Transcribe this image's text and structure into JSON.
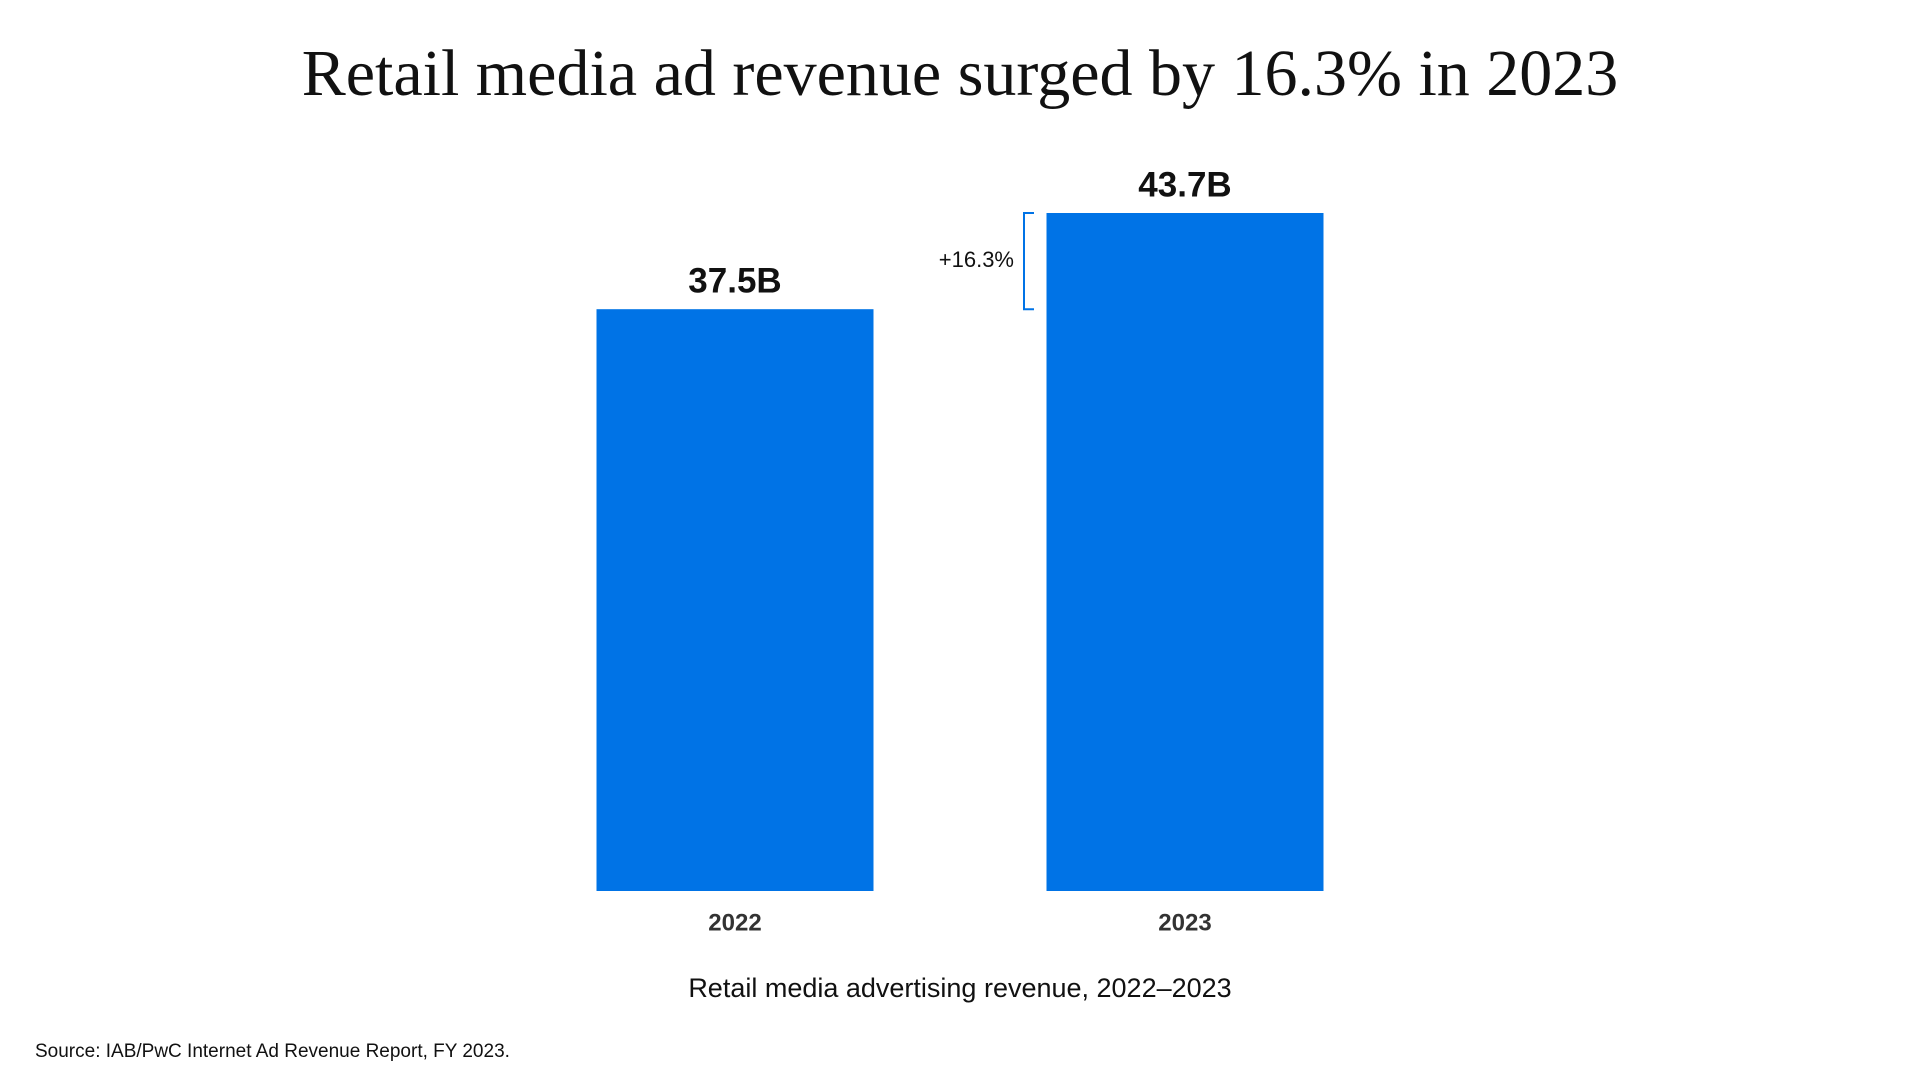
{
  "chart_data": {
    "type": "bar",
    "title": "Retail media ad revenue surged by 16.3% in 2023",
    "categories": [
      "2022",
      "2023"
    ],
    "values": [
      37.5,
      43.7
    ],
    "value_labels": [
      "37.5B",
      "43.7B"
    ],
    "color": "#0073e6",
    "annotation": "+16.3%",
    "x_label": "Retail media advertising revenue, 2022–2023",
    "source": "Source: IAB/PwC Internet Ad Revenue Report, FY 2023."
  }
}
